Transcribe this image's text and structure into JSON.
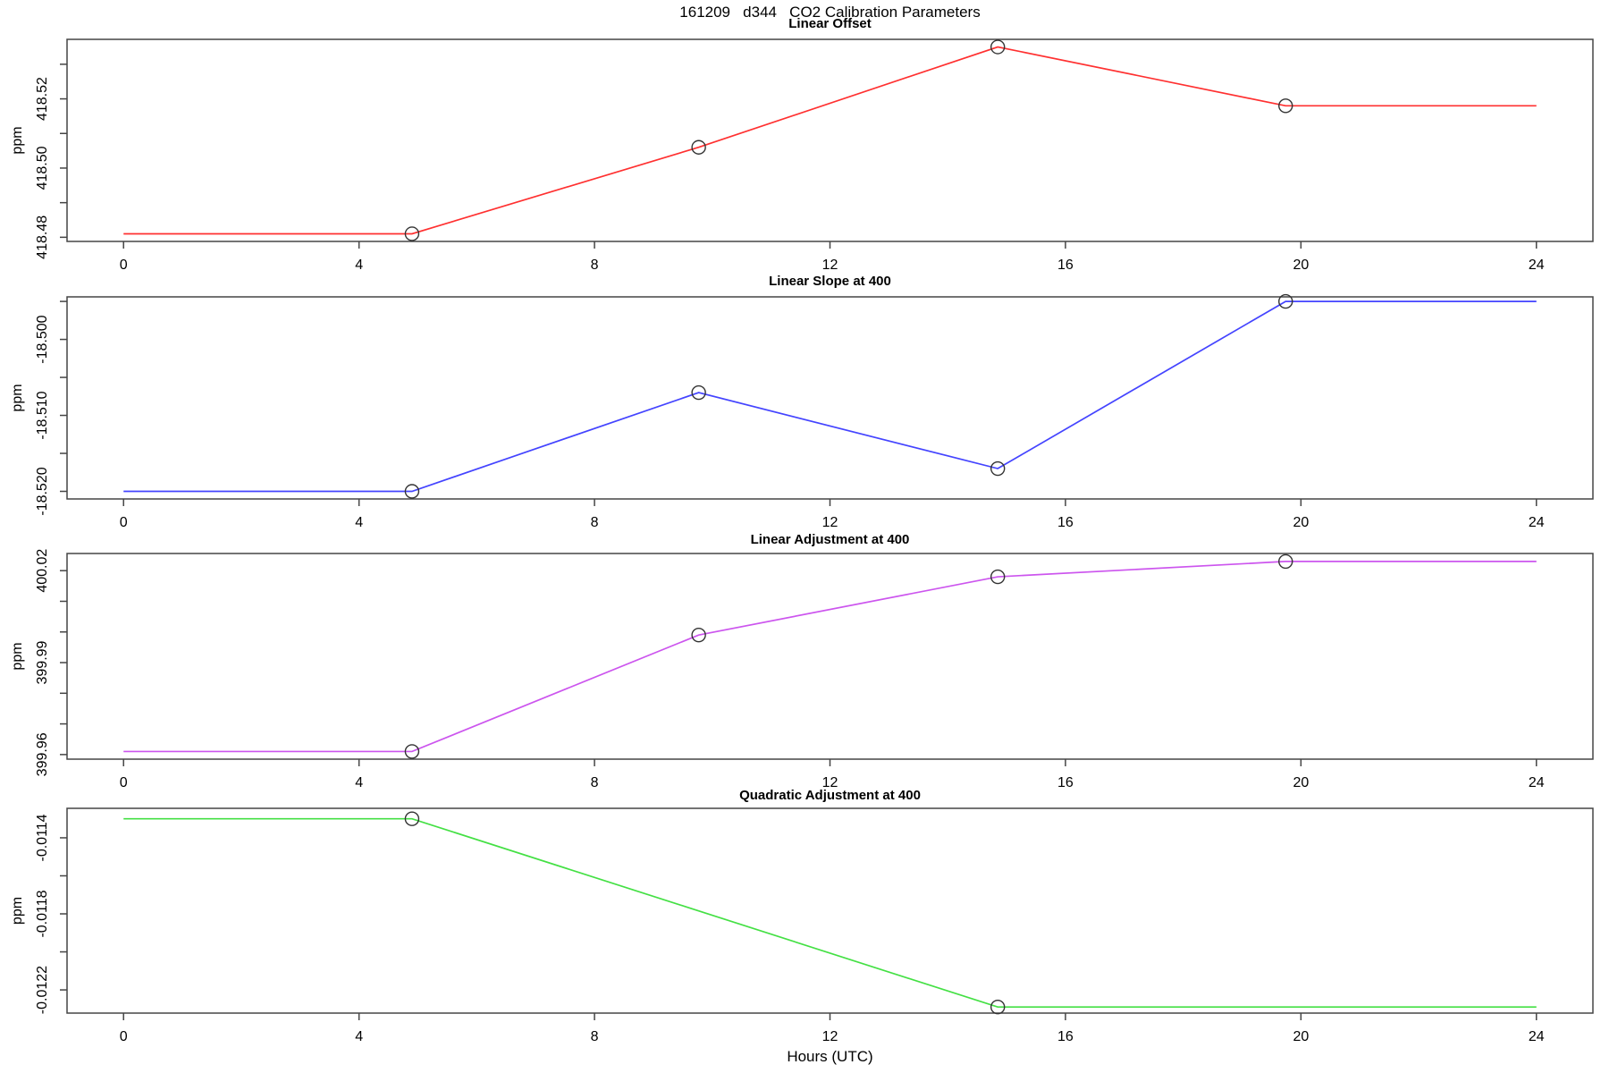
{
  "title": "161209   d344   CO2 Calibration Parameters",
  "xlabel": "Hours (UTC)",
  "ylabel": "ppm",
  "frame_color": "#454545",
  "marker_color": "#333333",
  "chart_data": {
    "type": "line",
    "x_axis": {
      "label": "Hours (UTC)",
      "ticks": [
        0,
        4,
        8,
        12,
        16,
        20,
        24
      ],
      "tick_labels": [
        "0",
        "4",
        "8",
        "12",
        "16",
        "20",
        "24"
      ],
      "xlim": [
        -0.96,
        24.96
      ]
    },
    "panels": [
      {
        "title": "Linear Offset",
        "ylabel": "ppm",
        "color": "#ff3030",
        "ylim": [
          418.4788,
          418.5372
        ],
        "yticks": [
          {
            "v": 418.48,
            "label": "418.48"
          },
          {
            "v": 418.49,
            "label": ""
          },
          {
            "v": 418.5,
            "label": "418.50"
          },
          {
            "v": 418.51,
            "label": ""
          },
          {
            "v": 418.52,
            "label": "418.52"
          },
          {
            "v": 418.53,
            "label": ""
          }
        ],
        "x": [
          0,
          4.9,
          9.77,
          14.85,
          19.74,
          24
        ],
        "y": [
          418.481,
          418.481,
          418.506,
          418.535,
          418.518,
          418.518
        ],
        "marker_indices": [
          1,
          2,
          3,
          4
        ]
      },
      {
        "title": "Linear Slope at 400",
        "ylabel": "ppm",
        "color": "#4444ff",
        "ylim": [
          -18.521,
          -18.4944
        ],
        "yticks": [
          {
            "v": -18.52,
            "label": "-18.520"
          },
          {
            "v": -18.515,
            "label": ""
          },
          {
            "v": -18.51,
            "label": "-18.510"
          },
          {
            "v": -18.505,
            "label": ""
          },
          {
            "v": -18.5,
            "label": "-18.500"
          },
          {
            "v": -18.495,
            "label": ""
          }
        ],
        "x": [
          0,
          4.9,
          9.77,
          14.85,
          19.74,
          24
        ],
        "y": [
          -18.52,
          -18.52,
          -18.507,
          -18.517,
          -18.495,
          -18.495
        ],
        "marker_indices": [
          1,
          2,
          3,
          4
        ]
      },
      {
        "title": "Linear Adjustment at 400",
        "ylabel": "ppm",
        "color": "#cc55ee",
        "ylim": [
          399.9585,
          400.0256
        ],
        "yticks": [
          {
            "v": 399.96,
            "label": "399.96"
          },
          {
            "v": 399.97,
            "label": ""
          },
          {
            "v": 399.98,
            "label": ""
          },
          {
            "v": 399.99,
            "label": "399.99"
          },
          {
            "v": 400.0,
            "label": ""
          },
          {
            "v": 400.01,
            "label": ""
          },
          {
            "v": 400.02,
            "label": "400.02"
          }
        ],
        "x": [
          0,
          4.9,
          9.77,
          14.85,
          19.74,
          24
        ],
        "y": [
          399.961,
          399.961,
          399.999,
          400.018,
          400.023,
          400.023
        ],
        "marker_indices": [
          1,
          2,
          3,
          4
        ]
      },
      {
        "title": "Quadratic Adjustment at 400",
        "ylabel": "ppm",
        "color": "#44e044",
        "ylim": [
          -0.012322,
          -0.011245
        ],
        "yticks": [
          {
            "v": -0.0122,
            "label": "-0.0122"
          },
          {
            "v": -0.012,
            "label": ""
          },
          {
            "v": -0.0118,
            "label": "-0.0118"
          },
          {
            "v": -0.0116,
            "label": ""
          },
          {
            "v": -0.0114,
            "label": "-0.0114"
          }
        ],
        "x": [
          0,
          4.9,
          14.85,
          24
        ],
        "y": [
          -0.0113,
          -0.0113,
          -0.01229,
          -0.01229
        ],
        "marker_indices": [
          1,
          2
        ]
      }
    ]
  }
}
